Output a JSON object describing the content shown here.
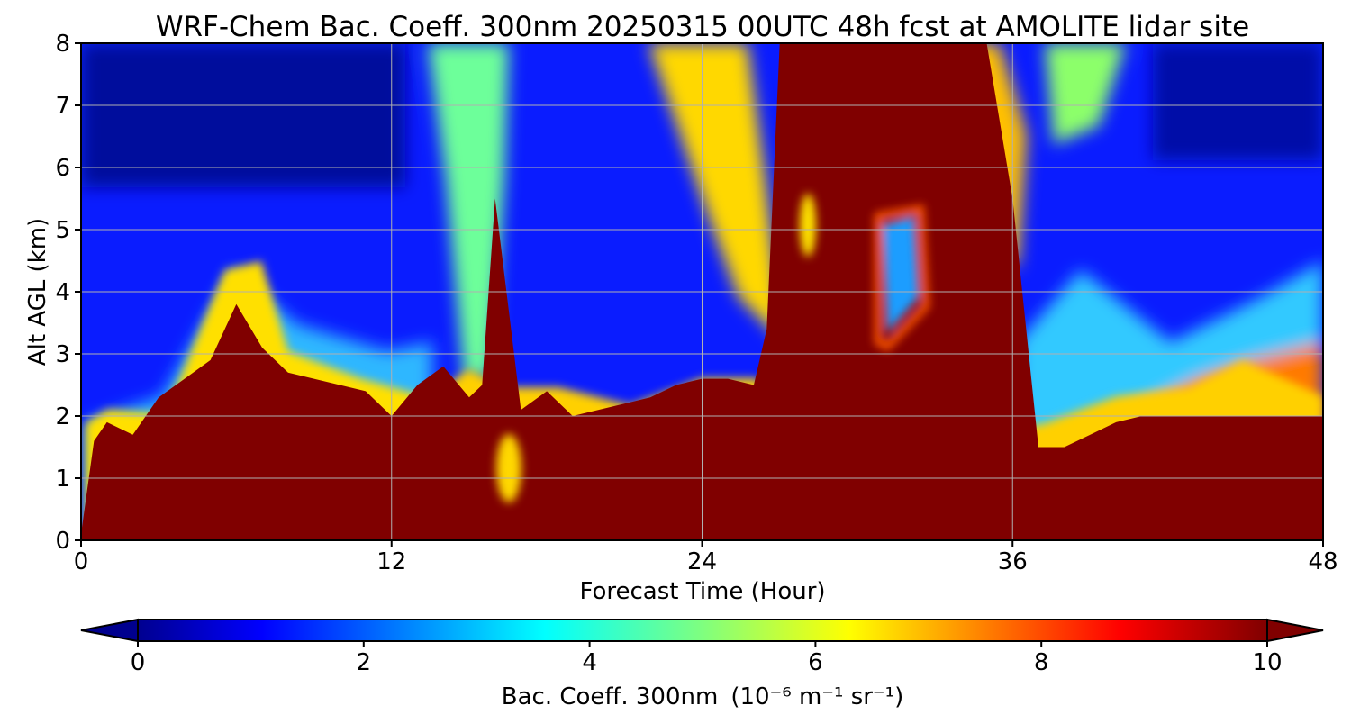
{
  "chart_data": {
    "type": "heatmap",
    "title": "WRF-Chem Bac. Coeff. 300nm  20250315 00UTC 48h fcst at AMOLITE lidar site",
    "xlabel": "Forecast Time (Hour)",
    "ylabel": "Alt AGL (km)",
    "xlim": [
      0,
      48
    ],
    "ylim": [
      0,
      8
    ],
    "xticks": [
      "0",
      "12",
      "24",
      "36",
      "48"
    ],
    "yticks": [
      "0",
      "1",
      "2",
      "3",
      "4",
      "5",
      "6",
      "7",
      "8"
    ],
    "grid": true,
    "colormap": "jet",
    "colorbar": {
      "label": "Bac. Coeff. 300nm",
      "units": "(10⁻⁶ m⁻¹ sr⁻¹)",
      "ticks": [
        "0",
        "2",
        "4",
        "6",
        "8",
        "10"
      ],
      "range": [
        0,
        10
      ],
      "extend": "both",
      "orientation": "horizontal"
    },
    "x": [
      0,
      0.5,
      1,
      2,
      3,
      4,
      5,
      6,
      7,
      8,
      9,
      10,
      11,
      12,
      13,
      14,
      15,
      15.5,
      16,
      17,
      18,
      19,
      20,
      21,
      22,
      23,
      24,
      25,
      26,
      26.5,
      27,
      28,
      29,
      30,
      31,
      32,
      33,
      34,
      35,
      36,
      37,
      38,
      39,
      40,
      41,
      42,
      43,
      44,
      45,
      46,
      47,
      48
    ],
    "boundary_layer_top_km": [
      0.1,
      1.6,
      1.9,
      1.7,
      2.3,
      2.6,
      2.9,
      3.8,
      3.1,
      2.7,
      2.6,
      2.5,
      2.4,
      2.0,
      2.5,
      2.8,
      2.3,
      2.5,
      5.5,
      2.1,
      2.4,
      2.0,
      2.1,
      2.2,
      2.3,
      2.5,
      2.6,
      2.6,
      2.5,
      3.4,
      8.0,
      8.0,
      8.0,
      8.0,
      8.0,
      8.0,
      8.0,
      8.0,
      8.0,
      5.5,
      1.5,
      1.5,
      1.7,
      1.9,
      2.0,
      2.0,
      2.0,
      2.0,
      2.0,
      2.0,
      2.0,
      2.0
    ]
  }
}
